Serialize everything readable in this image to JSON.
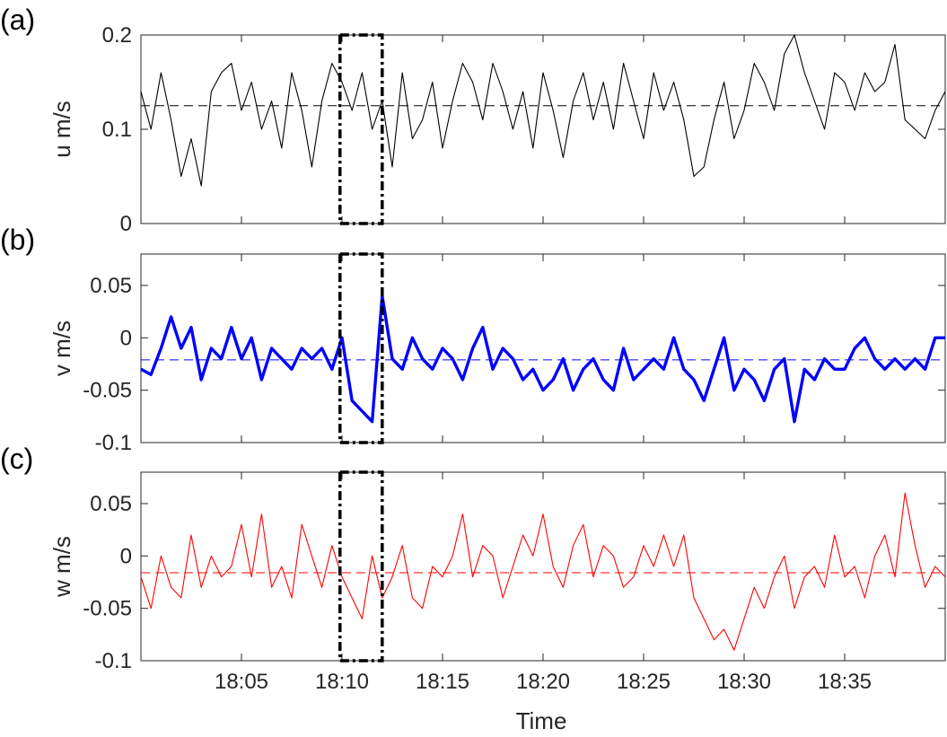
{
  "chart_data": [
    {
      "panel_label": "(a)",
      "type": "line",
      "ylabel": "u m/s",
      "ylim": [
        0,
        0.2
      ],
      "yticks": [
        0,
        0.1,
        0.2
      ],
      "ytick_labels": [
        "0",
        "0.1",
        "0.2"
      ],
      "xlim_minutes": [
        0,
        40
      ],
      "color": "#000000",
      "linewidth": "thin",
      "mean": 0.125,
      "mean_style": "dashed",
      "series": [
        {
          "x_minutes": [
            0,
            0.5,
            1,
            1.5,
            2,
            2.5,
            3,
            3.5,
            4,
            4.5,
            5,
            5.5,
            6,
            6.5,
            7,
            7.5,
            8,
            8.5,
            9,
            9.5,
            10,
            10.5,
            11,
            11.5,
            12,
            12.5,
            13,
            13.5,
            14,
            14.5,
            15,
            15.5,
            16,
            16.5,
            17,
            17.5,
            18,
            18.5,
            19,
            19.5,
            20,
            20.5,
            21,
            21.5,
            22,
            22.5,
            23,
            23.5,
            24,
            24.5,
            25,
            25.5,
            26,
            26.5,
            27,
            27.5,
            28,
            28.5,
            29,
            29.5,
            30,
            30.5,
            31,
            31.5,
            32,
            32.5,
            33,
            33.5,
            34,
            34.5,
            35,
            35.5,
            36,
            36.5,
            37,
            37.5,
            38,
            38.5,
            39,
            39.5,
            40
          ],
          "values": [
            0.14,
            0.1,
            0.16,
            0.11,
            0.05,
            0.09,
            0.04,
            0.14,
            0.16,
            0.17,
            0.12,
            0.15,
            0.1,
            0.13,
            0.08,
            0.16,
            0.12,
            0.06,
            0.13,
            0.17,
            0.15,
            0.12,
            0.16,
            0.1,
            0.13,
            0.06,
            0.16,
            0.09,
            0.11,
            0.15,
            0.08,
            0.13,
            0.17,
            0.15,
            0.11,
            0.17,
            0.14,
            0.1,
            0.14,
            0.08,
            0.16,
            0.12,
            0.07,
            0.13,
            0.16,
            0.11,
            0.15,
            0.1,
            0.17,
            0.13,
            0.09,
            0.16,
            0.12,
            0.15,
            0.11,
            0.05,
            0.06,
            0.11,
            0.15,
            0.09,
            0.12,
            0.17,
            0.15,
            0.12,
            0.18,
            0.2,
            0.16,
            0.13,
            0.1,
            0.16,
            0.15,
            0.12,
            0.16,
            0.14,
            0.15,
            0.19,
            0.11,
            0.1,
            0.09,
            0.12,
            0.14
          ]
        }
      ]
    },
    {
      "panel_label": "(b)",
      "type": "line",
      "ylabel": "v m/s",
      "ylim": [
        -0.1,
        0.08
      ],
      "yticks": [
        -0.1,
        -0.05,
        0,
        0.05
      ],
      "ytick_labels": [
        "-0.1",
        "-0.05",
        "0",
        "0.05"
      ],
      "xlim_minutes": [
        0,
        40
      ],
      "color": "#0000ff",
      "linewidth": "thick",
      "mean": -0.021,
      "mean_style": "dashed",
      "series": [
        {
          "x_minutes": [
            0,
            0.5,
            1,
            1.5,
            2,
            2.5,
            3,
            3.5,
            4,
            4.5,
            5,
            5.5,
            6,
            6.5,
            7,
            7.5,
            8,
            8.5,
            9,
            9.5,
            10,
            10.5,
            11,
            11.5,
            12,
            12.5,
            13,
            13.5,
            14,
            14.5,
            15,
            15.5,
            16,
            16.5,
            17,
            17.5,
            18,
            18.5,
            19,
            19.5,
            20,
            20.5,
            21,
            21.5,
            22,
            22.5,
            23,
            23.5,
            24,
            24.5,
            25,
            25.5,
            26,
            26.5,
            27,
            27.5,
            28,
            28.5,
            29,
            29.5,
            30,
            30.5,
            31,
            31.5,
            32,
            32.5,
            33,
            33.5,
            34,
            34.5,
            35,
            35.5,
            36,
            36.5,
            37,
            37.5,
            38,
            38.5,
            39,
            39.5,
            40
          ],
          "values": [
            -0.03,
            -0.035,
            -0.01,
            0.02,
            -0.01,
            0.01,
            -0.04,
            -0.01,
            -0.02,
            0.01,
            -0.02,
            0,
            -0.04,
            -0.01,
            -0.02,
            -0.03,
            -0.01,
            -0.02,
            -0.01,
            -0.03,
            0,
            -0.06,
            -0.07,
            -0.08,
            0.04,
            -0.02,
            -0.03,
            0,
            -0.02,
            -0.03,
            -0.01,
            -0.02,
            -0.04,
            -0.01,
            0.01,
            -0.03,
            -0.01,
            -0.02,
            -0.04,
            -0.03,
            -0.05,
            -0.04,
            -0.02,
            -0.05,
            -0.03,
            -0.02,
            -0.04,
            -0.05,
            -0.01,
            -0.04,
            -0.03,
            -0.02,
            -0.03,
            0,
            -0.03,
            -0.04,
            -0.06,
            -0.03,
            0,
            -0.05,
            -0.03,
            -0.04,
            -0.06,
            -0.03,
            -0.02,
            -0.08,
            -0.03,
            -0.04,
            -0.02,
            -0.03,
            -0.03,
            -0.01,
            0,
            -0.02,
            -0.03,
            -0.02,
            -0.03,
            -0.02,
            -0.03,
            0,
            0
          ]
        }
      ]
    },
    {
      "panel_label": "(c)",
      "type": "line",
      "ylabel": "w m/s",
      "ylim": [
        -0.1,
        0.08
      ],
      "yticks": [
        -0.1,
        -0.05,
        0,
        0.05
      ],
      "ytick_labels": [
        "-0.1",
        "-0.05",
        "0",
        "0.05"
      ],
      "xlim_minutes": [
        0,
        40
      ],
      "xticks_minutes": [
        5,
        10,
        15,
        20,
        25,
        30,
        35
      ],
      "xtick_labels": [
        "18:05",
        "18:10",
        "18:15",
        "18:20",
        "18:25",
        "18:30",
        "18:35"
      ],
      "xlabel": "Time",
      "color": "#ff0000",
      "linewidth": "thin",
      "mean": -0.016,
      "mean_style": "dashed",
      "series": [
        {
          "x_minutes": [
            0,
            0.5,
            1,
            1.5,
            2,
            2.5,
            3,
            3.5,
            4,
            4.5,
            5,
            5.5,
            6,
            6.5,
            7,
            7.5,
            8,
            8.5,
            9,
            9.5,
            10,
            10.5,
            11,
            11.5,
            12,
            12.5,
            13,
            13.5,
            14,
            14.5,
            15,
            15.5,
            16,
            16.5,
            17,
            17.5,
            18,
            18.5,
            19,
            19.5,
            20,
            20.5,
            21,
            21.5,
            22,
            22.5,
            23,
            23.5,
            24,
            24.5,
            25,
            25.5,
            26,
            26.5,
            27,
            27.5,
            28,
            28.5,
            29,
            29.5,
            30,
            30.5,
            31,
            31.5,
            32,
            32.5,
            33,
            33.5,
            34,
            34.5,
            35,
            35.5,
            36,
            36.5,
            37,
            37.5,
            38,
            38.5,
            39,
            39.5,
            40
          ],
          "values": [
            -0.02,
            -0.05,
            0,
            -0.03,
            -0.04,
            0.02,
            -0.03,
            0,
            -0.02,
            -0.01,
            0.03,
            -0.02,
            0.04,
            -0.03,
            -0.01,
            -0.04,
            0.03,
            0,
            -0.03,
            0.01,
            -0.02,
            -0.04,
            -0.06,
            0,
            -0.04,
            -0.02,
            0.01,
            -0.04,
            -0.05,
            -0.01,
            -0.02,
            0,
            0.04,
            -0.02,
            0.01,
            0,
            -0.04,
            -0.01,
            0.02,
            0,
            0.04,
            -0.01,
            -0.03,
            0.01,
            0.03,
            -0.02,
            0.01,
            0,
            -0.03,
            -0.02,
            0.01,
            -0.01,
            0.02,
            -0.01,
            0.02,
            -0.04,
            -0.06,
            -0.08,
            -0.07,
            -0.09,
            -0.06,
            -0.03,
            -0.05,
            -0.02,
            0,
            -0.05,
            -0.02,
            -0.01,
            -0.03,
            0.02,
            -0.02,
            -0.01,
            -0.04,
            0,
            0.02,
            -0.02,
            0.06,
            0.01,
            -0.03,
            -0.01,
            -0.02
          ]
        }
      ]
    }
  ],
  "highlight_window_minutes": [
    9.9,
    12
  ]
}
